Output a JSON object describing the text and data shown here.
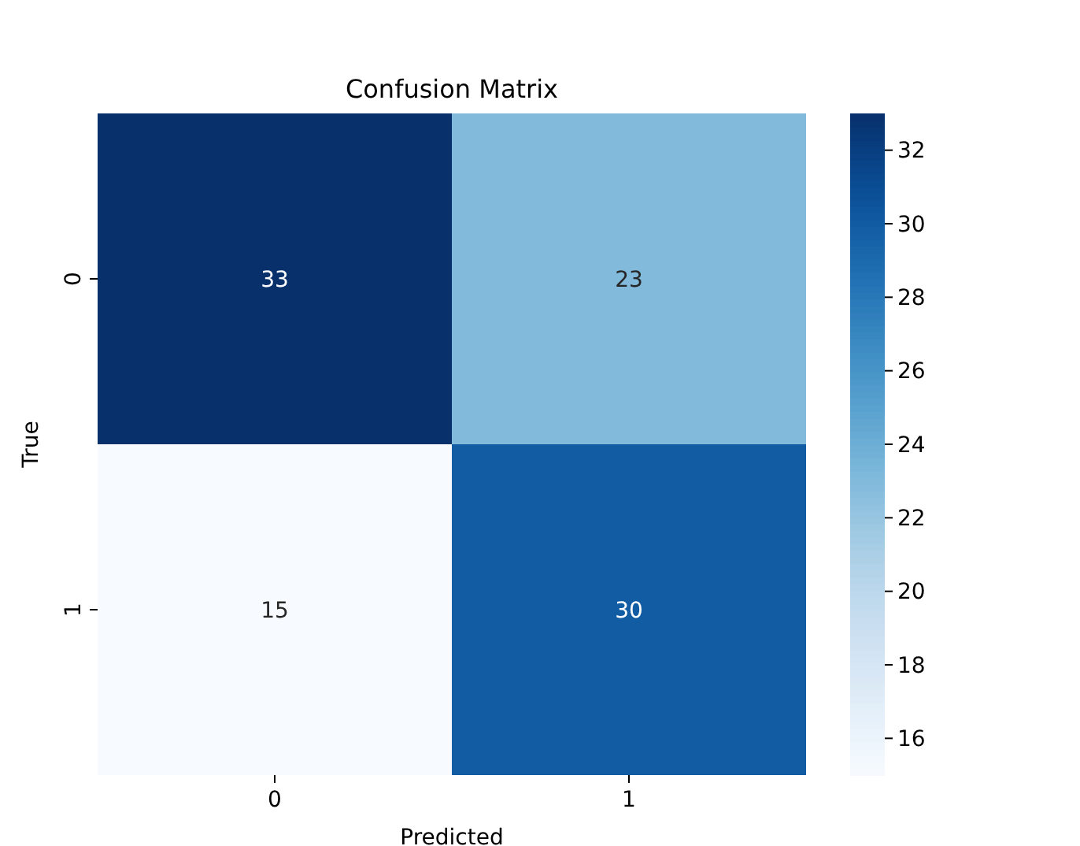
{
  "chart_data": {
    "type": "heatmap",
    "title": "Confusion Matrix",
    "xlabel": "Predicted",
    "ylabel": "True",
    "categories": [
      "0",
      "1"
    ],
    "y_categories": [
      "0",
      "1"
    ],
    "cells": [
      [
        33,
        23
      ],
      [
        15,
        30
      ]
    ],
    "data_labels": true,
    "clim": [
      15,
      33
    ],
    "cticks": [
      16,
      18,
      20,
      22,
      24,
      26,
      28,
      30,
      32
    ]
  }
}
